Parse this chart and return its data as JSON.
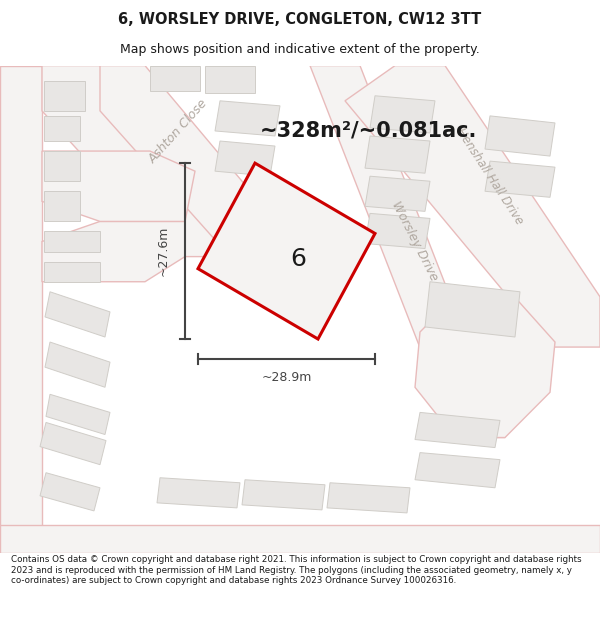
{
  "title": "6, WORSLEY DRIVE, CONGLETON, CW12 3TT",
  "subtitle": "Map shows position and indicative extent of the property.",
  "area_text": "~328m²/~0.081ac.",
  "property_number": "6",
  "dim_width": "~28.9m",
  "dim_height": "~27.6m",
  "footer": "Contains OS data © Crown copyright and database right 2021. This information is subject to Crown copyright and database rights 2023 and is reproduced with the permission of HM Land Registry. The polygons (including the associated geometry, namely x, y co-ordinates) are subject to Crown copyright and database rights 2023 Ordnance Survey 100026316.",
  "bg_color": "#f7f6f5",
  "road_line_color": "#e8bbbb",
  "building_color": "#e8e6e4",
  "building_edge": "#d0cdc8",
  "highlight_color": "#cc0000",
  "dim_line_color": "#444444",
  "text_color": "#1a1a1a",
  "road_label_color": "#b0a8a0",
  "prop_fill": "#f0eeec"
}
